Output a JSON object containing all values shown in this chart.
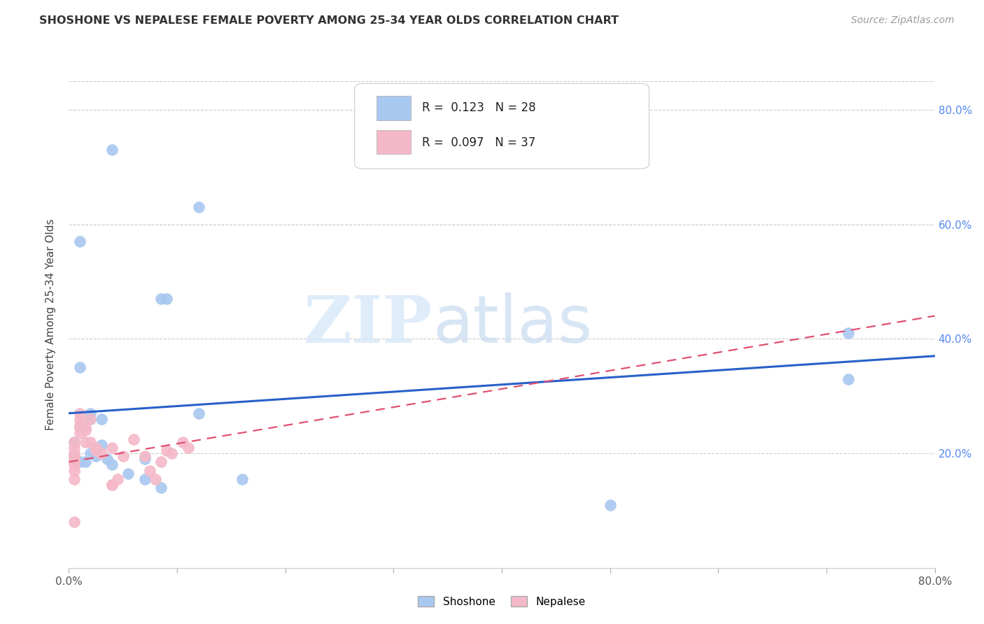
{
  "title": "SHOSHONE VS NEPALESE FEMALE POVERTY AMONG 25-34 YEAR OLDS CORRELATION CHART",
  "source": "Source: ZipAtlas.com",
  "xlabel": "",
  "ylabel": "Female Poverty Among 25-34 Year Olds",
  "xlim": [
    0.0,
    0.8
  ],
  "ylim": [
    0.0,
    0.85
  ],
  "watermark_zip": "ZIP",
  "watermark_atlas": "atlas",
  "shoshone_color": "#a8c8f0",
  "nepalese_color": "#f4b8c8",
  "shoshone_line_color": "#2860c8",
  "nepalese_line_color": "#e05070",
  "legend_R_shoshone": "0.123",
  "legend_N_shoshone": "28",
  "legend_R_nepalese": "0.097",
  "legend_N_nepalese": "37",
  "shoshone_x": [
    0.01,
    0.04,
    0.12,
    0.085,
    0.09,
    0.01,
    0.02,
    0.02,
    0.03,
    0.01,
    0.005,
    0.005,
    0.01,
    0.015,
    0.02,
    0.025,
    0.03,
    0.035,
    0.04,
    0.055,
    0.07,
    0.07,
    0.085,
    0.12,
    0.16,
    0.5,
    0.72,
    0.72
  ],
  "shoshone_y": [
    0.57,
    0.73,
    0.63,
    0.47,
    0.47,
    0.35,
    0.26,
    0.27,
    0.26,
    0.245,
    0.22,
    0.195,
    0.185,
    0.185,
    0.2,
    0.195,
    0.215,
    0.19,
    0.18,
    0.165,
    0.19,
    0.155,
    0.14,
    0.27,
    0.155,
    0.11,
    0.33,
    0.41
  ],
  "nepalese_x": [
    0.005,
    0.005,
    0.005,
    0.005,
    0.005,
    0.005,
    0.005,
    0.005,
    0.005,
    0.005,
    0.01,
    0.01,
    0.01,
    0.01,
    0.01,
    0.015,
    0.015,
    0.015,
    0.02,
    0.02,
    0.025,
    0.025,
    0.03,
    0.04,
    0.04,
    0.04,
    0.045,
    0.05,
    0.06,
    0.07,
    0.075,
    0.08,
    0.085,
    0.09,
    0.095,
    0.105,
    0.11
  ],
  "nepalese_y": [
    0.22,
    0.21,
    0.2,
    0.195,
    0.19,
    0.185,
    0.18,
    0.17,
    0.155,
    0.08,
    0.27,
    0.26,
    0.25,
    0.245,
    0.235,
    0.245,
    0.24,
    0.22,
    0.26,
    0.22,
    0.21,
    0.205,
    0.2,
    0.21,
    0.145,
    0.145,
    0.155,
    0.195,
    0.225,
    0.195,
    0.17,
    0.155,
    0.185,
    0.205,
    0.2,
    0.22,
    0.21
  ],
  "shoshone_line": [
    0.0,
    0.8,
    0.27,
    0.37
  ],
  "nepalese_line": [
    0.0,
    0.8,
    0.185,
    0.44
  ],
  "background_color": "#ffffff",
  "grid_color": "#cccccc"
}
